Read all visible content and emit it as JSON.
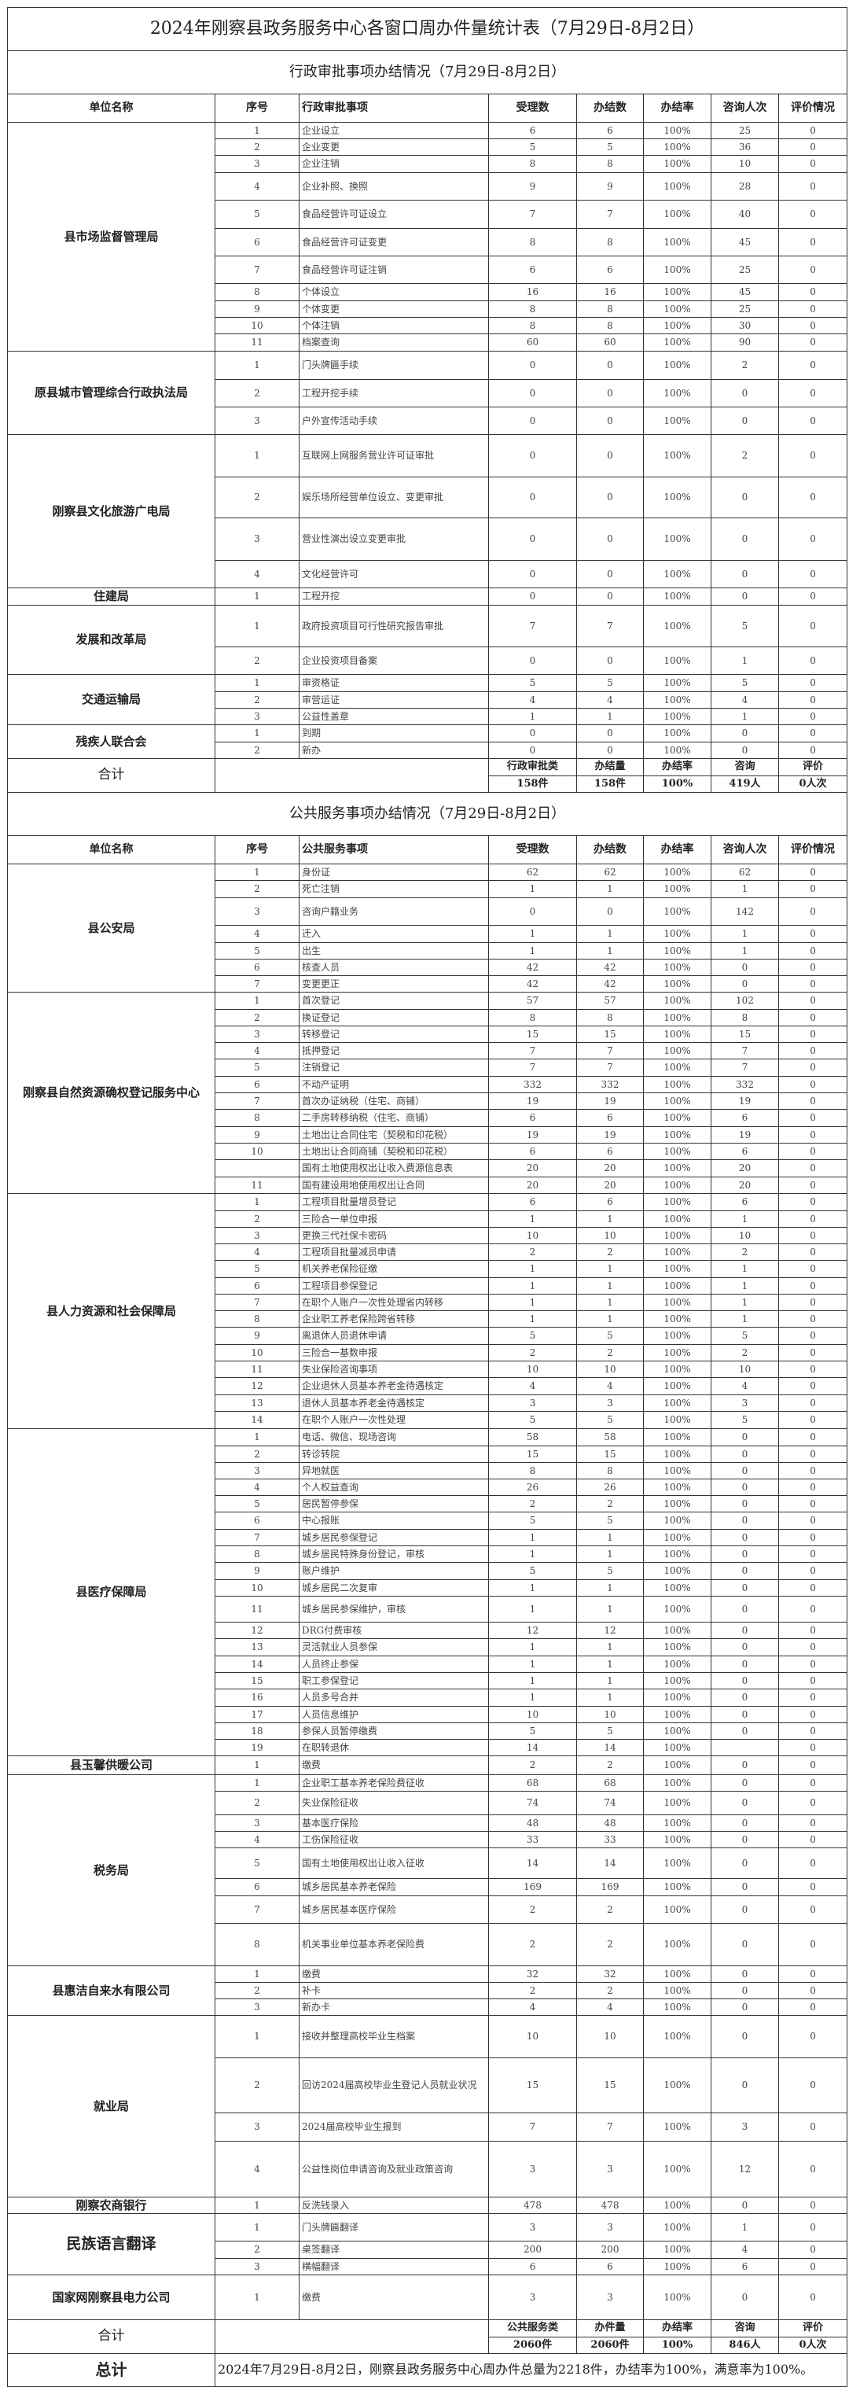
{
  "title": "2024年刚察县政务服务中心各窗口周办件量统计表（7月29日-8月2日）",
  "admin": {
    "subtitle": "行政审批事项办结情况（7月29日-8月2日）",
    "headers": [
      "单位名称",
      "序号",
      "行政审批事项",
      "受理数",
      "办结数",
      "办结率",
      "咨询人次",
      "评价情况"
    ],
    "groups": [
      {
        "unit": "县市场监督管理局",
        "rows": [
          [
            "1",
            "企业设立",
            "6",
            "6",
            "100%",
            "25",
            "0"
          ],
          [
            "2",
            "企业变更",
            "5",
            "5",
            "100%",
            "36",
            "0"
          ],
          [
            "3",
            "企业注销",
            "8",
            "8",
            "100%",
            "10",
            "0"
          ],
          [
            "4",
            "企业补照、换照",
            "9",
            "9",
            "100%",
            "28",
            "0"
          ],
          [
            "5",
            "食品经营许可证设立",
            "7",
            "7",
            "100%",
            "40",
            "0"
          ],
          [
            "6",
            "食品经营许可证变更",
            "8",
            "8",
            "100%",
            "45",
            "0"
          ],
          [
            "7",
            "食品经营许可证注销",
            "6",
            "6",
            "100%",
            "25",
            "0"
          ],
          [
            "8",
            "个体设立",
            "16",
            "16",
            "100%",
            "45",
            "0"
          ],
          [
            "9",
            "个体变更",
            "8",
            "8",
            "100%",
            "25",
            "0"
          ],
          [
            "10",
            "个体注销",
            "8",
            "8",
            "100%",
            "30",
            "0"
          ],
          [
            "11",
            "档案查询",
            "60",
            "60",
            "100%",
            "90",
            "0"
          ]
        ]
      },
      {
        "unit": "原县城市管理综合行政执法局",
        "rows": [
          [
            "1",
            "门头牌匾手续",
            "0",
            "0",
            "100%",
            "2",
            "0"
          ],
          [
            "2",
            "工程开挖手续",
            "0",
            "0",
            "100%",
            "0",
            "0"
          ],
          [
            "3",
            "户外宣传活动手续",
            "0",
            "0",
            "100%",
            "0",
            "0"
          ]
        ]
      },
      {
        "unit": "刚察县文化旅游广电局",
        "rows": [
          [
            "1",
            "互联网上网服务营业许可证审批",
            "0",
            "0",
            "100%",
            "2",
            "0"
          ],
          [
            "2",
            "娱乐场所经营单位设立、变更审批",
            "0",
            "0",
            "100%",
            "0",
            "0"
          ],
          [
            "3",
            "营业性演出设立变更审批",
            "0",
            "0",
            "100%",
            "0",
            "0"
          ],
          [
            "4",
            "文化经营许可",
            "0",
            "0",
            "100%",
            "0",
            "0"
          ]
        ]
      },
      {
        "unit": "住建局",
        "rows": [
          [
            "1",
            "工程开挖",
            "0",
            "0",
            "100%",
            "0",
            "0"
          ]
        ]
      },
      {
        "unit": "发展和改革局",
        "rows": [
          [
            "1",
            "政府投资项目可行性研究报告审批",
            "7",
            "7",
            "100%",
            "5",
            "0"
          ],
          [
            "2",
            "企业投资项目备案",
            "0",
            "0",
            "100%",
            "1",
            "0"
          ]
        ]
      },
      {
        "unit": "交通运输局",
        "rows": [
          [
            "1",
            "审资格证",
            "5",
            "5",
            "100%",
            "5",
            "0"
          ],
          [
            "2",
            "审营运证",
            "4",
            "4",
            "100%",
            "4",
            "0"
          ],
          [
            "3",
            "公益性盖章",
            "1",
            "1",
            "100%",
            "1",
            "0"
          ]
        ]
      },
      {
        "unit": "残疾人联合会",
        "rows": [
          [
            "1",
            "到期",
            "0",
            "0",
            "100%",
            "0",
            "0"
          ],
          [
            "2",
            "新办",
            "0",
            "0",
            "100%",
            "0",
            "0"
          ]
        ]
      }
    ],
    "total": {
      "label": "合计",
      "headers": [
        "行政审批类",
        "办结量",
        "办结率",
        "咨询",
        "评价"
      ],
      "values": [
        "158件",
        "158件",
        "100%",
        "419人",
        "0人次"
      ]
    }
  },
  "public": {
    "subtitle": "公共服务事项办结情况（7月29日-8月2日）",
    "headers": [
      "单位名称",
      "序号",
      "公共服务事项",
      "受理数",
      "办结数",
      "办结率",
      "咨询人次",
      "评价情况"
    ],
    "groups": [
      {
        "unit": "县公安局",
        "rows": [
          [
            "1",
            "身份证",
            "62",
            "62",
            "100%",
            "62",
            "0"
          ],
          [
            "2",
            "死亡注销",
            "1",
            "1",
            "100%",
            "1",
            "0"
          ],
          [
            "3",
            "咨询户籍业务",
            "0",
            "0",
            "100%",
            "142",
            "0"
          ],
          [
            "4",
            "迁入",
            "1",
            "1",
            "100%",
            "1",
            "0"
          ],
          [
            "5",
            "出生",
            "1",
            "1",
            "100%",
            "1",
            "0"
          ],
          [
            "6",
            "核查人员",
            "42",
            "42",
            "100%",
            "0",
            "0"
          ],
          [
            "7",
            "变更更正",
            "42",
            "42",
            "100%",
            "0",
            "0"
          ]
        ]
      },
      {
        "unit": "刚察县自然资源确权登记服务中心",
        "rows": [
          [
            "1",
            "首次登记",
            "57",
            "57",
            "100%",
            "102",
            "0"
          ],
          [
            "2",
            "换证登记",
            "8",
            "8",
            "100%",
            "8",
            "0"
          ],
          [
            "3",
            "转移登记",
            "15",
            "15",
            "100%",
            "15",
            "0"
          ],
          [
            "4",
            "抵押登记",
            "7",
            "7",
            "100%",
            "7",
            "0"
          ],
          [
            "5",
            "注销登记",
            "7",
            "7",
            "100%",
            "7",
            "0"
          ],
          [
            "6",
            "不动产证明",
            "332",
            "332",
            "100%",
            "332",
            "0"
          ],
          [
            "7",
            "首次办证纳税（住宅、商铺）",
            "19",
            "19",
            "100%",
            "19",
            "0"
          ],
          [
            "8",
            "二手房转移纳税（住宅、商铺）",
            "6",
            "6",
            "100%",
            "6",
            "0"
          ],
          [
            "9",
            "土地出让合同住宅（契税和印花税）",
            "19",
            "19",
            "100%",
            "19",
            "0"
          ],
          [
            "10",
            "土地出让合同商铺（契税和印花税）",
            "6",
            "6",
            "100%",
            "6",
            "0"
          ],
          [
            "",
            "国有土地使用权出让收入费源信息表",
            "20",
            "20",
            "100%",
            "20",
            "0"
          ],
          [
            "11",
            "国有建设用地使用权出让合同",
            "20",
            "20",
            "100%",
            "20",
            "0"
          ]
        ]
      },
      {
        "unit": "县人力资源和社会保障局",
        "rows": [
          [
            "1",
            "工程项目批量增员登记",
            "6",
            "6",
            "100%",
            "6",
            "0"
          ],
          [
            "2",
            "三险合一单位申报",
            "1",
            "1",
            "100%",
            "1",
            "0"
          ],
          [
            "3",
            "更换三代社保卡密码",
            "10",
            "10",
            "100%",
            "10",
            "0"
          ],
          [
            "4",
            "工程项目批量减员申请",
            "2",
            "2",
            "100%",
            "2",
            "0"
          ],
          [
            "5",
            "机关养老保险征缴",
            "1",
            "1",
            "100%",
            "1",
            "0"
          ],
          [
            "6",
            "工程项目参保登记",
            "1",
            "1",
            "100%",
            "1",
            "0"
          ],
          [
            "7",
            "在职个人账户一次性处理省内转移",
            "1",
            "1",
            "100%",
            "1",
            "0"
          ],
          [
            "8",
            "企业职工养老保险跨省转移",
            "1",
            "1",
            "100%",
            "1",
            "0"
          ],
          [
            "9",
            "离退休人员退休申请",
            "5",
            "5",
            "100%",
            "5",
            "0"
          ],
          [
            "10",
            "三险合一基数申报",
            "2",
            "2",
            "100%",
            "2",
            "0"
          ],
          [
            "11",
            "失业保险咨询事项",
            "10",
            "10",
            "100%",
            "10",
            "0"
          ],
          [
            "12",
            "企业退休人员基本养老金待遇核定",
            "4",
            "4",
            "100%",
            "4",
            "0"
          ],
          [
            "13",
            "退休人员基本养老金待遇核定",
            "3",
            "3",
            "100%",
            "3",
            "0"
          ],
          [
            "14",
            "在职个人账户一次性处理",
            "5",
            "5",
            "100%",
            "5",
            "0"
          ]
        ]
      },
      {
        "unit": "县医疗保障局",
        "rows": [
          [
            "1",
            "电话、微信、现场咨询",
            "58",
            "58",
            "100%",
            "0",
            "0"
          ],
          [
            "2",
            "转诊转院",
            "15",
            "15",
            "100%",
            "0",
            "0"
          ],
          [
            "3",
            "异地就医",
            "8",
            "8",
            "100%",
            "0",
            "0"
          ],
          [
            "4",
            "个人权益查询",
            "26",
            "26",
            "100%",
            "0",
            "0"
          ],
          [
            "5",
            "居民暂停参保",
            "2",
            "2",
            "100%",
            "0",
            "0"
          ],
          [
            "6",
            "中心报账",
            "5",
            "5",
            "100%",
            "0",
            "0"
          ],
          [
            "7",
            "城乡居民参保登记",
            "1",
            "1",
            "100%",
            "0",
            "0"
          ],
          [
            "8",
            "城乡居民特殊身份登记，审核",
            "1",
            "1",
            "100%",
            "0",
            "0"
          ],
          [
            "9",
            "账户维护",
            "5",
            "5",
            "100%",
            "0",
            "0"
          ],
          [
            "10",
            "城乡居民二次复审",
            "1",
            "1",
            "100%",
            "0",
            "0"
          ],
          [
            "11",
            "城乡居民参保维护，审核",
            "1",
            "1",
            "100%",
            "0",
            "0"
          ],
          [
            "12",
            "DRG付费审核",
            "12",
            "12",
            "100%",
            "0",
            "0"
          ],
          [
            "13",
            "灵活就业人员参保",
            "1",
            "1",
            "100%",
            "0",
            "0"
          ],
          [
            "14",
            "人员终止参保",
            "1",
            "1",
            "100%",
            "0",
            "0"
          ],
          [
            "15",
            "职工参保登记",
            "1",
            "1",
            "100%",
            "0",
            "0"
          ],
          [
            "16",
            "人员多号合并",
            "1",
            "1",
            "100%",
            "0",
            "0"
          ],
          [
            "17",
            "人员信息维护",
            "10",
            "10",
            "100%",
            "0",
            "0"
          ],
          [
            "18",
            "参保人员暂停缴费",
            "5",
            "5",
            "100%",
            "0",
            "0"
          ],
          [
            "19",
            "在职转退休",
            "14",
            "14",
            "100%",
            "",
            "0"
          ]
        ]
      },
      {
        "unit": "县玉馨供暖公司",
        "rows": [
          [
            "1",
            "缴费",
            "2",
            "2",
            "100%",
            "0",
            "0"
          ]
        ]
      },
      {
        "unit": "税务局",
        "rows": [
          [
            "1",
            "企业职工基本养老保险费征收",
            "68",
            "68",
            "100%",
            "0",
            "0"
          ],
          [
            "2",
            "失业保险征收",
            "74",
            "74",
            "100%",
            "0",
            "0"
          ],
          [
            "3",
            "基本医疗保险",
            "48",
            "48",
            "100%",
            "0",
            "0"
          ],
          [
            "4",
            "工伤保险征收",
            "33",
            "33",
            "100%",
            "0",
            "0"
          ],
          [
            "5",
            "国有土地使用权出让收入征收",
            "14",
            "14",
            "100%",
            "0",
            "0"
          ],
          [
            "6",
            "城乡居民基本养老保险",
            "169",
            "169",
            "100%",
            "0",
            "0"
          ],
          [
            "7",
            "城乡居民基本医疗保险",
            "2",
            "2",
            "100%",
            "0",
            "0"
          ],
          [
            "8",
            "机关事业单位基本养老保险费",
            "2",
            "2",
            "100%",
            "0",
            "0"
          ]
        ]
      },
      {
        "unit": "县惠洁自来水有限公司",
        "rows": [
          [
            "1",
            "缴费",
            "32",
            "32",
            "100%",
            "0",
            "0"
          ],
          [
            "2",
            "补卡",
            "2",
            "2",
            "100%",
            "0",
            "0"
          ],
          [
            "3",
            "新办卡",
            "4",
            "4",
            "100%",
            "0",
            "0"
          ]
        ]
      },
      {
        "unit": "就业局",
        "rows": [
          [
            "1",
            "接收并整理高校毕业生档案",
            "10",
            "10",
            "100%",
            "0",
            "0"
          ],
          [
            "2",
            "回访2024届高校毕业生登记人员就业状况",
            "15",
            "15",
            "100%",
            "0",
            "0"
          ],
          [
            "3",
            "2024届高校毕业生报到",
            "7",
            "7",
            "100%",
            "3",
            "0"
          ],
          [
            "4",
            "公益性岗位申请咨询及就业政策咨询",
            "3",
            "3",
            "100%",
            "12",
            "0"
          ]
        ]
      },
      {
        "unit": "刚察农商银行",
        "rows": [
          [
            "1",
            "反洗钱录入",
            "478",
            "478",
            "100%",
            "0",
            "0"
          ]
        ]
      },
      {
        "unit": "民族语言翻译",
        "rows": [
          [
            "1",
            "门头牌匾翻译",
            "3",
            "3",
            "100%",
            "1",
            "0"
          ],
          [
            "2",
            "桌签翻译",
            "200",
            "200",
            "100%",
            "4",
            "0"
          ],
          [
            "3",
            "横幅翻译",
            "6",
            "6",
            "100%",
            "6",
            "0"
          ]
        ]
      },
      {
        "unit": "国家网刚察县电力公司",
        "rows": [
          [
            "1",
            "缴费",
            "3",
            "3",
            "100%",
            "0",
            "0"
          ]
        ]
      }
    ],
    "total": {
      "label": "合计",
      "headers": [
        "公共服务类",
        "办件量",
        "办结率",
        "咨询",
        "评价"
      ],
      "values": [
        "2060件",
        "2060件",
        "100%",
        "846人",
        "0人次"
      ]
    }
  },
  "grand_total": {
    "label": "总计",
    "text": "2024年7月29日-8月2日，刚察县政务服务中心周办件总量为2218件，办结率为100%，满意率为100%。"
  }
}
